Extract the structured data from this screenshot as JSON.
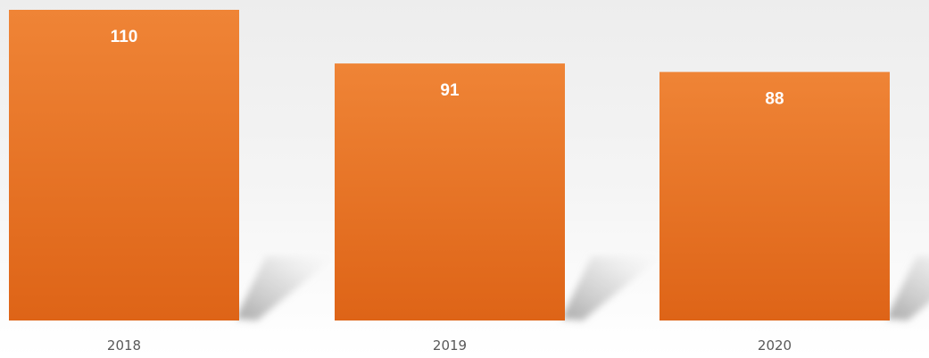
{
  "chart_data": {
    "type": "bar",
    "categories": [
      "2018",
      "2019",
      "2020"
    ],
    "values": [
      110,
      91,
      88
    ],
    "data_labels": [
      "110",
      "91",
      "88"
    ],
    "title": "",
    "xlabel": "",
    "ylabel": "",
    "ylim": [
      0,
      110
    ],
    "grid": false,
    "legend": "none",
    "colors": {
      "bar_top": "#ef8436",
      "bar_bottom": "#de6417",
      "shadow": "#a8a8a8",
      "data_label": "#ffffff",
      "tick_label": "#595959"
    }
  }
}
